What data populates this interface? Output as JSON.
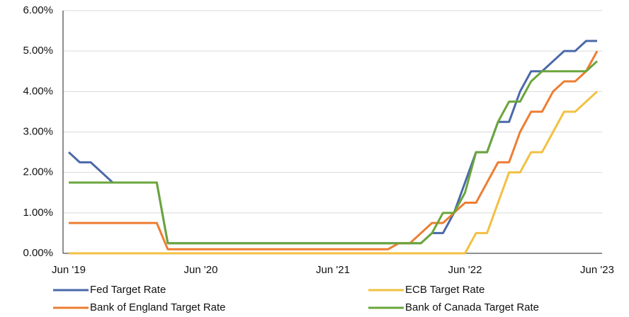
{
  "chart_data": {
    "type": "line",
    "categories": [
      "Jun '19",
      null,
      null,
      null,
      null,
      null,
      null,
      null,
      null,
      null,
      null,
      null,
      "Jun '20",
      null,
      null,
      null,
      null,
      null,
      null,
      null,
      null,
      null,
      null,
      null,
      "Jun '21",
      null,
      null,
      null,
      null,
      null,
      null,
      null,
      null,
      null,
      null,
      null,
      "Jun '22",
      null,
      null,
      null,
      null,
      null,
      null,
      null,
      null,
      null,
      null,
      null,
      "Jun '23"
    ],
    "series": [
      {
        "name": "Fed Target Rate",
        "color": "#4a69a8",
        "values": [
          2.5,
          2.25,
          2.25,
          2.0,
          1.75,
          1.75,
          1.75,
          1.75,
          1.75,
          0.25,
          0.25,
          0.25,
          0.25,
          0.25,
          0.25,
          0.25,
          0.25,
          0.25,
          0.25,
          0.25,
          0.25,
          0.25,
          0.25,
          0.25,
          0.25,
          0.25,
          0.25,
          0.25,
          0.25,
          0.25,
          0.25,
          0.25,
          0.25,
          0.5,
          0.5,
          1.0,
          1.75,
          2.5,
          2.5,
          3.25,
          3.25,
          4.0,
          4.5,
          4.5,
          4.75,
          5.0,
          5.0,
          5.25,
          5.25
        ]
      },
      {
        "name": "ECB Target Rate",
        "color": "#f2c042",
        "values": [
          0,
          0,
          0,
          0,
          0,
          0,
          0,
          0,
          0,
          0,
          0,
          0,
          0,
          0,
          0,
          0,
          0,
          0,
          0,
          0,
          0,
          0,
          0,
          0,
          0,
          0,
          0,
          0,
          0,
          0,
          0,
          0,
          0,
          0,
          0,
          0,
          0,
          0.5,
          0.5,
          1.25,
          2.0,
          2.0,
          2.5,
          2.5,
          3.0,
          3.5,
          3.5,
          3.75,
          4.0
        ]
      },
      {
        "name": "Bank of England Target Rate",
        "color": "#ed7d31",
        "values": [
          0.75,
          0.75,
          0.75,
          0.75,
          0.75,
          0.75,
          0.75,
          0.75,
          0.75,
          0.1,
          0.1,
          0.1,
          0.1,
          0.1,
          0.1,
          0.1,
          0.1,
          0.1,
          0.1,
          0.1,
          0.1,
          0.1,
          0.1,
          0.1,
          0.1,
          0.1,
          0.1,
          0.1,
          0.1,
          0.1,
          0.25,
          0.25,
          0.5,
          0.75,
          0.75,
          1.0,
          1.25,
          1.25,
          1.75,
          2.25,
          2.25,
          3.0,
          3.5,
          3.5,
          4.0,
          4.25,
          4.25,
          4.5,
          5.0
        ]
      },
      {
        "name": "Bank of Canada Target Rate",
        "color": "#6aa63b",
        "values": [
          1.75,
          1.75,
          1.75,
          1.75,
          1.75,
          1.75,
          1.75,
          1.75,
          1.75,
          0.25,
          0.25,
          0.25,
          0.25,
          0.25,
          0.25,
          0.25,
          0.25,
          0.25,
          0.25,
          0.25,
          0.25,
          0.25,
          0.25,
          0.25,
          0.25,
          0.25,
          0.25,
          0.25,
          0.25,
          0.25,
          0.25,
          0.25,
          0.25,
          0.5,
          1.0,
          1.0,
          1.5,
          2.5,
          2.5,
          3.25,
          3.75,
          3.75,
          4.25,
          4.5,
          4.5,
          4.5,
          4.5,
          4.5,
          4.75
        ]
      }
    ],
    "ylim": [
      0,
      6
    ],
    "yticks": [
      {
        "value": 0,
        "label": "0.00%"
      },
      {
        "value": 1,
        "label": "1.00%"
      },
      {
        "value": 2,
        "label": "2.00%"
      },
      {
        "value": 3,
        "label": "3.00%"
      },
      {
        "value": 4,
        "label": "4.00%"
      },
      {
        "value": 5,
        "label": "5.00%"
      },
      {
        "value": 6,
        "label": "6.00%"
      }
    ],
    "grid": true,
    "legend": "bottom"
  }
}
